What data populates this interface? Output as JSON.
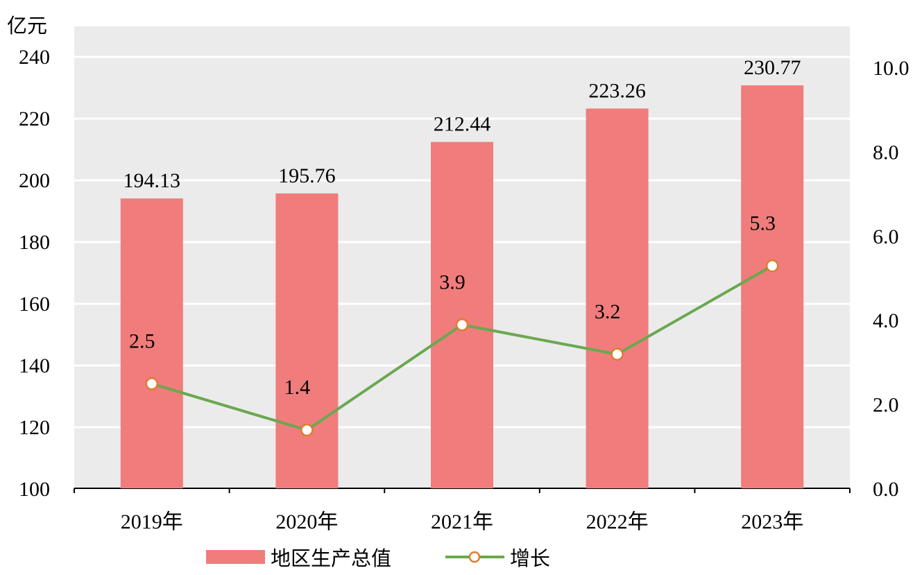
{
  "chart_data": {
    "type": "bar+line",
    "categories": [
      "2019年",
      "2020年",
      "2021年",
      "2022年",
      "2023年"
    ],
    "series": [
      {
        "name": "地区生产总值",
        "type": "bar",
        "axis": "left",
        "values": [
          194.13,
          195.76,
          212.44,
          223.26,
          230.77
        ],
        "labels": [
          "194.13",
          "195.76",
          "212.44",
          "223.26",
          "230.77"
        ],
        "color": "#F07C7C"
      },
      {
        "name": "增长",
        "type": "line",
        "axis": "right",
        "values": [
          2.5,
          1.4,
          3.9,
          3.2,
          5.3
        ],
        "labels": [
          "2.5",
          "1.4",
          "3.9",
          "3.2",
          "5.3"
        ],
        "color": "#6AA84F",
        "marker_edge": "#E07B2E"
      }
    ],
    "y_left": {
      "unit": "亿元",
      "ylim": [
        100,
        240
      ],
      "ticks": [
        "100",
        "120",
        "140",
        "160",
        "180",
        "200",
        "220",
        "240"
      ]
    },
    "y_right": {
      "ylim": [
        0,
        10
      ],
      "ticks": [
        "0.0",
        "2.0",
        "4.0",
        "6.0",
        "8.0",
        "10.0"
      ]
    },
    "grid": true,
    "plot_background": "#EBEBEB",
    "legend_position": "bottom-center"
  }
}
